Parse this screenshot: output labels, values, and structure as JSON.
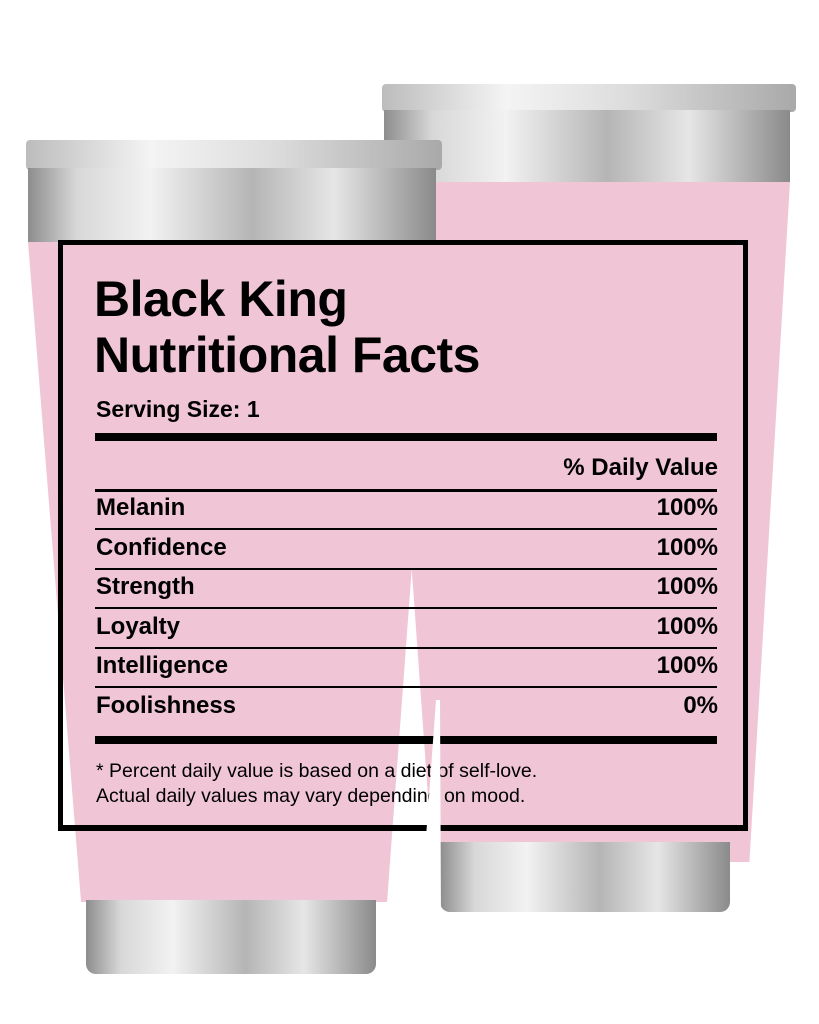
{
  "label": {
    "title_line1": "Black King",
    "title_line2": "Nutritional Facts",
    "serving_size": "Serving Size: 1",
    "daily_value_header": "% Daily Value",
    "rows": [
      {
        "name": "Melanin",
        "value": "100%"
      },
      {
        "name": "Confidence",
        "value": "100%"
      },
      {
        "name": "Strength",
        "value": "100%"
      },
      {
        "name": "Loyalty",
        "value": "100%"
      },
      {
        "name": "Intelligence",
        "value": "100%"
      },
      {
        "name": "Foolishness",
        "value": "0%"
      }
    ],
    "footnote_line1": "* Percent daily value is based on a diet of self-love.",
    "footnote_line2": "Actual daily values may vary depending on mood."
  },
  "colors": {
    "tumbler_body": "#f0c6d6",
    "ink": "#000000",
    "metal": "#c8c8c8"
  }
}
